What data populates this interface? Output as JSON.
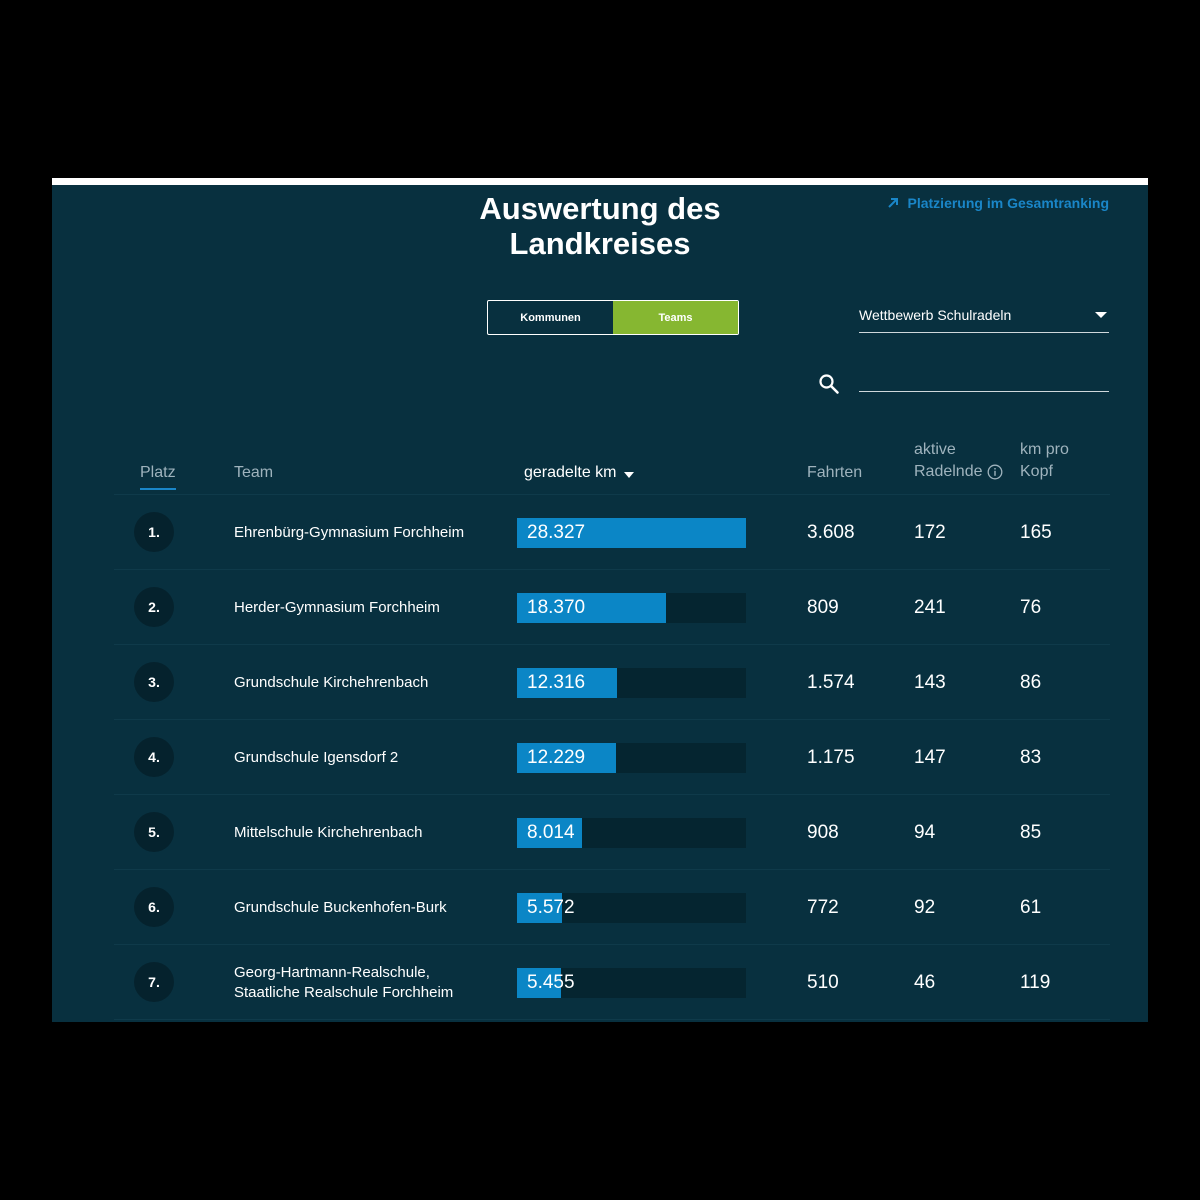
{
  "header": {
    "title": "Auswertung des\nLandkreises",
    "link_label": "Platzierung im Gesamtranking"
  },
  "toggle": {
    "options": [
      "Kommunen",
      "Teams"
    ],
    "selected": "Teams"
  },
  "competition_select": {
    "value": "Wettbewerb Schulradeln"
  },
  "search": {
    "value": "",
    "placeholder": ""
  },
  "table": {
    "columns": {
      "platz": "Platz",
      "team": "Team",
      "km": "geradelte km",
      "fahrten": "Fahrten",
      "aktive_line1": "aktive",
      "aktive_line2": "Radelnde",
      "kmkopf_line1": "km pro",
      "kmkopf_line2": "Kopf"
    },
    "sorted_by": "geradelte km",
    "max_km": 28327,
    "rows": [
      {
        "rank": "1.",
        "team": "Ehrenbürg-Gymnasium Forchheim",
        "km": "28.327",
        "km_value": 28327,
        "fahrten": "3.608",
        "aktive": "172",
        "km_pro_kopf": "165"
      },
      {
        "rank": "2.",
        "team": "Herder-Gymnasium Forchheim",
        "km": "18.370",
        "km_value": 18370,
        "fahrten": "809",
        "aktive": "241",
        "km_pro_kopf": "76"
      },
      {
        "rank": "3.",
        "team": "Grundschule Kirchehrenbach",
        "km": "12.316",
        "km_value": 12316,
        "fahrten": "1.574",
        "aktive": "143",
        "km_pro_kopf": "86"
      },
      {
        "rank": "4.",
        "team": "Grundschule Igensdorf 2",
        "km": "12.229",
        "km_value": 12229,
        "fahrten": "1.175",
        "aktive": "147",
        "km_pro_kopf": "83"
      },
      {
        "rank": "5.",
        "team": "Mittelschule Kirchehrenbach",
        "km": "8.014",
        "km_value": 8014,
        "fahrten": "908",
        "aktive": "94",
        "km_pro_kopf": "85"
      },
      {
        "rank": "6.",
        "team": "Grundschule Buckenhofen-Burk",
        "km": "5.572",
        "km_value": 5572,
        "fahrten": "772",
        "aktive": "92",
        "km_pro_kopf": "61"
      },
      {
        "rank": "7.",
        "team": "Georg-Hartmann-Realschule,\nStaatliche Realschule Forchheim",
        "km": "5.455",
        "km_value": 5455,
        "fahrten": "510",
        "aktive": "46",
        "km_pro_kopf": "119"
      }
    ]
  },
  "colors": {
    "panel_bg": "#08303f",
    "accent_green": "#86b731",
    "bar_blue": "#0b86c6",
    "link_blue": "#1a86c8"
  }
}
